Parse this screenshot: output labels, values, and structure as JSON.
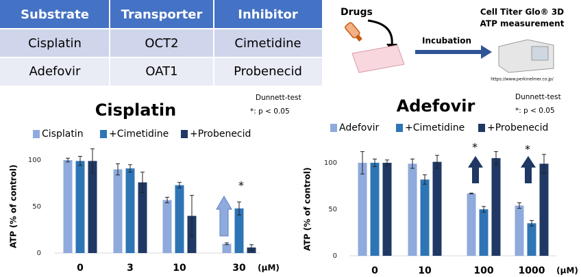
{
  "table": {
    "header": [
      "Substrate",
      "Transporter",
      "Inhibitor"
    ],
    "rows": [
      [
        "Cisplatin",
        "OCT2",
        "Cimetidine"
      ],
      [
        "Adefovir",
        "OAT1",
        "Probenecid"
      ]
    ]
  },
  "diagram": {
    "drugs": "Drugs",
    "incubation": "Incubation",
    "instrument": [
      "Cell Titer Glo® 3D",
      "ATP measurement"
    ],
    "credit": "https://www.perkinelmer.co.jp/"
  },
  "chart_data": [
    {
      "type": "bar",
      "title": "Cisplatin",
      "xlabel": "(μM)",
      "ylabel": "ATP (% of control)",
      "annotations": [
        "Dunnett-test",
        "*: p < 0.05",
        "*"
      ],
      "categories": [
        "0",
        "3",
        "10",
        "30"
      ],
      "ylim": [
        0,
        115
      ],
      "yticks": [
        0,
        50,
        100
      ],
      "series": [
        {
          "name": "Cisplatin",
          "color": "#8faadc",
          "values": [
            100,
            90,
            57,
            10
          ],
          "errors": [
            2,
            6,
            3,
            1
          ]
        },
        {
          "name": "+Cimetidine",
          "color": "#2e75b6",
          "values": [
            99,
            91,
            73,
            48
          ],
          "errors": [
            5,
            4,
            3,
            7
          ]
        },
        {
          "name": "+Probenecid",
          "color": "#1f3864",
          "values": [
            99,
            76,
            40,
            6
          ],
          "errors": [
            13,
            11,
            22,
            3
          ]
        }
      ]
    },
    {
      "type": "bar",
      "title": "Adefovir",
      "xlabel": "(μM)",
      "ylabel": "ATP (% of control)",
      "annotations": [
        "Dunnett-test",
        "*: p < 0.05",
        "*",
        "*"
      ],
      "categories": [
        "0",
        "10",
        "100",
        "1000"
      ],
      "ylim": [
        0,
        115
      ],
      "yticks": [
        0,
        50,
        100
      ],
      "series": [
        {
          "name": "Adefovir",
          "color": "#8faadc",
          "values": [
            100,
            99,
            67,
            54
          ],
          "errors": [
            12,
            5,
            0.5,
            3
          ]
        },
        {
          "name": "+Cimetidine",
          "color": "#2e75b6",
          "values": [
            100,
            82,
            50,
            35
          ],
          "errors": [
            4,
            5,
            3,
            3
          ]
        },
        {
          "name": "+Probenecid",
          "color": "#1f3864",
          "values": [
            100,
            101,
            105,
            99
          ],
          "errors": [
            3,
            7,
            7,
            10
          ]
        }
      ]
    }
  ]
}
